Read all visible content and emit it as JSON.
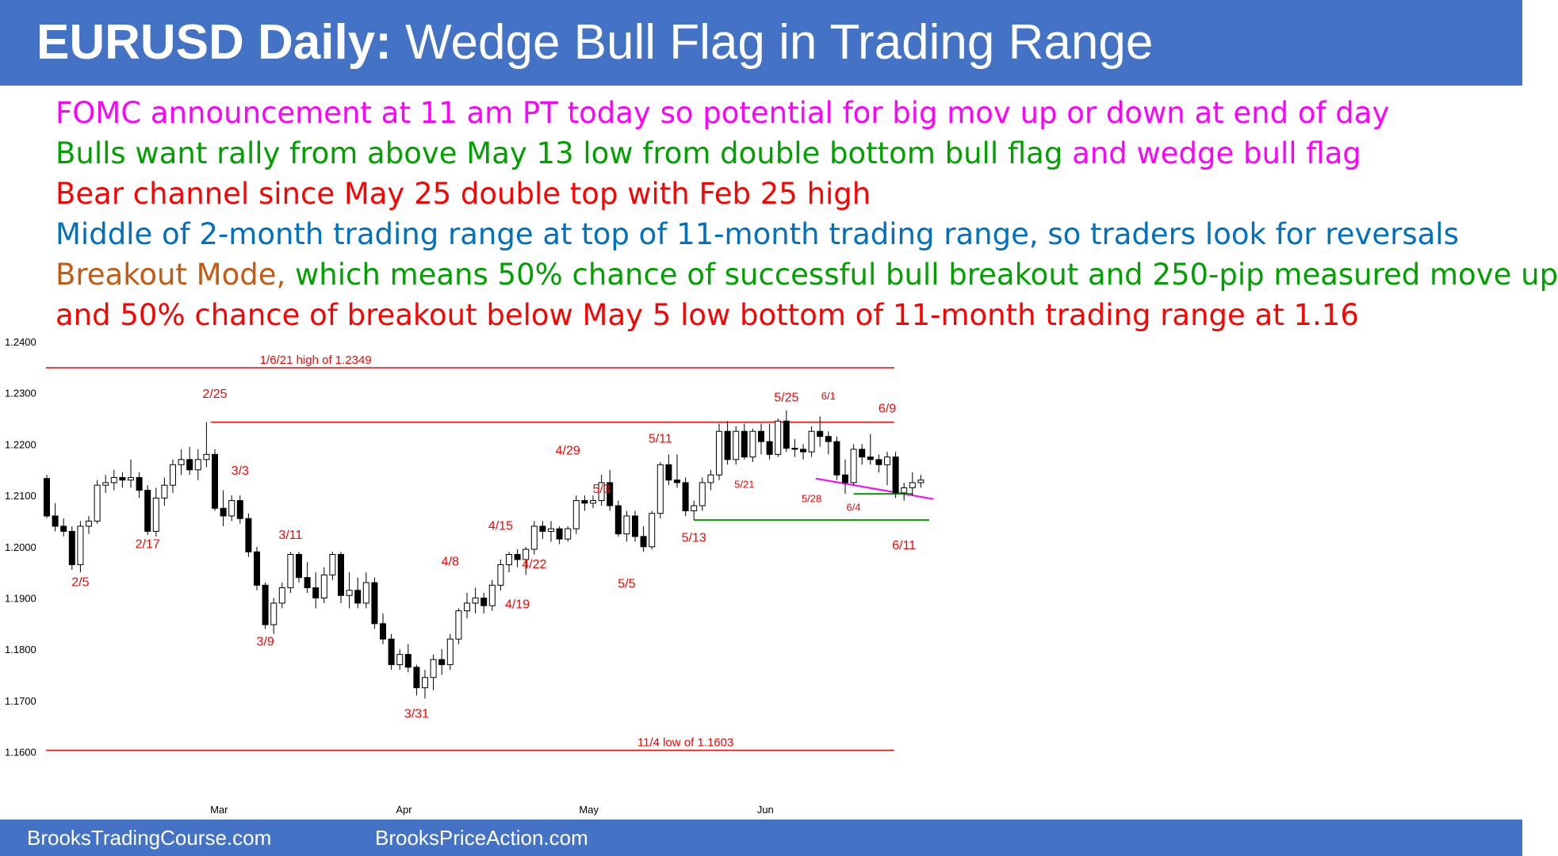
{
  "header": {
    "title_bold": "EURUSD Daily:",
    "title_rest": " Wedge Bull Flag in Trading Range"
  },
  "notes": [
    {
      "parts": [
        {
          "text": "FOMC announcement at 11 am PT today so potential for big mov up or down at end of day",
          "color": "#ff00ff"
        }
      ]
    },
    {
      "parts": [
        {
          "text": "Bulls want rally from above May 13 low from double bottom bull flag ",
          "color": "#00a000"
        },
        {
          "text": "and wedge bull flag",
          "color": "#ff00ff"
        }
      ]
    },
    {
      "parts": [
        {
          "text": "Bear channel since May 25 double top with Feb 25 high",
          "color": "#ff0000"
        }
      ]
    },
    {
      "parts": [
        {
          "text": "Middle of 2-month trading range at top of 11-month trading range, so traders look for reversals",
          "color": "#0070c0"
        }
      ]
    },
    {
      "parts": [
        {
          "text": "Breakout Mode, ",
          "color": "#c55a11"
        },
        {
          "text": "which means 50% chance of successful bull breakout and 250-pip measured move up",
          "color": "#00a000"
        }
      ]
    },
    {
      "parts": [
        {
          "text": "and 50% chance of breakout below May 5 low bottom of 11-month trading range at 1.16",
          "color": "#ff0000"
        }
      ]
    }
  ],
  "footer": {
    "left": "BrooksTradingCourse.com",
    "right": "BrooksPriceAction.com"
  },
  "chart_data": {
    "type": "candlestick",
    "ylim": [
      1.155,
      1.24
    ],
    "y_ticks": [
      "1.2400",
      "1.2300",
      "1.2200",
      "1.2100",
      "1.2000",
      "1.1900",
      "1.1800",
      "1.1700",
      "1.1600"
    ],
    "x_month_labels": [
      {
        "label": "Mar",
        "index": 20.5
      },
      {
        "label": "Apr",
        "index": 42.5
      },
      {
        "label": "May",
        "index": 64.5
      },
      {
        "label": "Jun",
        "index": 85.5
      }
    ],
    "candles": [
      [
        1.2133,
        1.214,
        1.2056,
        1.206
      ],
      [
        1.206,
        1.2085,
        1.203,
        1.204
      ],
      [
        1.204,
        1.2055,
        1.202,
        1.203
      ],
      [
        1.203,
        1.204,
        1.1955,
        1.1965
      ],
      [
        1.1965,
        1.205,
        1.195,
        1.204
      ],
      [
        1.204,
        1.206,
        1.2025,
        1.205
      ],
      [
        1.205,
        1.213,
        1.2045,
        1.212
      ],
      [
        1.212,
        1.214,
        1.2105,
        1.2125
      ],
      [
        1.2125,
        1.215,
        1.211,
        1.2135
      ],
      [
        1.2135,
        1.2145,
        1.2115,
        1.213
      ],
      [
        1.213,
        1.217,
        1.2115,
        1.2135
      ],
      [
        1.2135,
        1.2145,
        1.2095,
        1.211
      ],
      [
        1.211,
        1.212,
        1.2023,
        1.203
      ],
      [
        1.203,
        1.2115,
        1.202,
        1.2095
      ],
      [
        1.2095,
        1.2135,
        1.208,
        1.212
      ],
      [
        1.212,
        1.217,
        1.2105,
        1.216
      ],
      [
        1.216,
        1.219,
        1.214,
        1.217
      ],
      [
        1.217,
        1.2195,
        1.214,
        1.215
      ],
      [
        1.215,
        1.219,
        1.213,
        1.217
      ],
      [
        1.217,
        1.2243,
        1.2155,
        1.218
      ],
      [
        1.218,
        1.219,
        1.207,
        1.2075
      ],
      [
        1.2075,
        1.211,
        1.204,
        1.206
      ],
      [
        1.206,
        1.21,
        1.205,
        1.209
      ],
      [
        1.209,
        1.21,
        1.2045,
        1.2055
      ],
      [
        1.2055,
        1.2065,
        1.198,
        1.199
      ],
      [
        1.199,
        1.2,
        1.1915,
        1.1925
      ],
      [
        1.1925,
        1.193,
        1.184,
        1.1848
      ],
      [
        1.1848,
        1.19,
        1.183,
        1.189
      ],
      [
        1.189,
        1.193,
        1.188,
        1.192
      ],
      [
        1.192,
        1.199,
        1.191,
        1.1985
      ],
      [
        1.1985,
        1.199,
        1.193,
        1.194
      ],
      [
        1.194,
        1.197,
        1.191,
        1.192
      ],
      [
        1.192,
        1.195,
        1.188,
        1.19
      ],
      [
        1.19,
        1.196,
        1.189,
        1.1945
      ],
      [
        1.1945,
        1.199,
        1.1935,
        1.1985
      ],
      [
        1.1985,
        1.199,
        1.189,
        1.1905
      ],
      [
        1.1905,
        1.195,
        1.188,
        1.1915
      ],
      [
        1.1915,
        1.194,
        1.188,
        1.189
      ],
      [
        1.189,
        1.195,
        1.188,
        1.193
      ],
      [
        1.193,
        1.194,
        1.184,
        1.185
      ],
      [
        1.185,
        1.187,
        1.181,
        1.182
      ],
      [
        1.182,
        1.183,
        1.176,
        1.177
      ],
      [
        1.177,
        1.18,
        1.176,
        1.179
      ],
      [
        1.179,
        1.181,
        1.1755,
        1.1765
      ],
      [
        1.1765,
        1.177,
        1.171,
        1.1725
      ],
      [
        1.1725,
        1.176,
        1.1704,
        1.1745
      ],
      [
        1.1745,
        1.179,
        1.172,
        1.178
      ],
      [
        1.178,
        1.18,
        1.175,
        1.177
      ],
      [
        1.177,
        1.183,
        1.176,
        1.182
      ],
      [
        1.182,
        1.188,
        1.181,
        1.1875
      ],
      [
        1.1875,
        1.191,
        1.186,
        1.189
      ],
      [
        1.189,
        1.192,
        1.187,
        1.19
      ],
      [
        1.19,
        1.191,
        1.187,
        1.1885
      ],
      [
        1.1885,
        1.1935,
        1.1875,
        1.1925
      ],
      [
        1.1925,
        1.1975,
        1.1915,
        1.1965
      ],
      [
        1.1965,
        1.199,
        1.195,
        1.1985
      ],
      [
        1.1985,
        1.1995,
        1.196,
        1.1975
      ],
      [
        1.1975,
        1.2,
        1.1945,
        1.1995
      ],
      [
        1.1995,
        1.205,
        1.1985,
        1.204
      ],
      [
        1.204,
        1.205,
        1.2015,
        1.203
      ],
      [
        1.203,
        1.205,
        1.201,
        1.2035
      ],
      [
        1.2035,
        1.204,
        1.2005,
        1.2015
      ],
      [
        1.2015,
        1.204,
        1.201,
        1.2035
      ],
      [
        1.2035,
        1.21,
        1.2025,
        1.209
      ],
      [
        1.209,
        1.21,
        1.207,
        1.2085
      ],
      [
        1.2085,
        1.21,
        1.2075,
        1.209
      ],
      [
        1.209,
        1.214,
        1.208,
        1.2125
      ],
      [
        1.2125,
        1.215,
        1.207,
        1.208
      ],
      [
        1.208,
        1.209,
        1.202,
        1.2025
      ],
      [
        1.2025,
        1.207,
        1.201,
        1.206
      ],
      [
        1.206,
        1.207,
        1.201,
        1.202
      ],
      [
        1.202,
        1.204,
        1.199,
        1.2
      ],
      [
        1.2,
        1.207,
        1.1995,
        1.2065
      ],
      [
        1.2065,
        1.2165,
        1.2055,
        1.216
      ],
      [
        1.216,
        1.218,
        1.212,
        1.213
      ],
      [
        1.213,
        1.218,
        1.2115,
        1.2125
      ],
      [
        1.2125,
        1.2135,
        1.206,
        1.207
      ],
      [
        1.207,
        1.209,
        1.2052,
        1.208
      ],
      [
        1.208,
        1.2135,
        1.207,
        1.2125
      ],
      [
        1.2125,
        1.215,
        1.211,
        1.214
      ],
      [
        1.214,
        1.224,
        1.213,
        1.2225
      ],
      [
        1.2225,
        1.2245,
        1.216,
        1.217
      ],
      [
        1.217,
        1.2235,
        1.216,
        1.2225
      ],
      [
        1.2225,
        1.224,
        1.217,
        1.2175
      ],
      [
        1.2175,
        1.223,
        1.2165,
        1.2225
      ],
      [
        1.2225,
        1.224,
        1.218,
        1.2205
      ],
      [
        1.2205,
        1.224,
        1.217,
        1.218
      ],
      [
        1.218,
        1.225,
        1.2175,
        1.2245
      ],
      [
        1.2245,
        1.2266,
        1.2185,
        1.2192
      ],
      [
        1.2192,
        1.221,
        1.2175,
        1.219
      ],
      [
        1.219,
        1.22,
        1.217,
        1.2185
      ],
      [
        1.2185,
        1.2235,
        1.2175,
        1.2225
      ],
      [
        1.2225,
        1.2254,
        1.2195,
        1.2215
      ],
      [
        1.2215,
        1.2225,
        1.218,
        1.2205
      ],
      [
        1.2205,
        1.2215,
        1.213,
        1.214
      ],
      [
        1.214,
        1.217,
        1.2103,
        1.2125
      ],
      [
        1.2125,
        1.22,
        1.212,
        1.219
      ],
      [
        1.219,
        1.22,
        1.216,
        1.2175
      ],
      [
        1.2175,
        1.222,
        1.216,
        1.217
      ],
      [
        1.217,
        1.218,
        1.2145,
        1.216
      ],
      [
        1.216,
        1.2185,
        1.212,
        1.2175
      ],
      [
        1.2175,
        1.2185,
        1.2095,
        1.2105
      ],
      [
        1.2105,
        1.2125,
        1.209,
        1.2115
      ],
      [
        1.2115,
        1.2145,
        1.21,
        1.2125
      ],
      [
        1.2125,
        1.214,
        1.2115,
        1.213
      ]
    ],
    "levels": [
      {
        "name": "level-line-1-2349",
        "y": 1.2349,
        "from": 0,
        "to": 110,
        "color": "#ff0000",
        "label": "1/6/21 high of 1.2349",
        "label_at": 32
      },
      {
        "name": "level-line-2-25-high",
        "y": 1.2243,
        "from": 19.5,
        "to": 110,
        "color": "#ff0000"
      },
      {
        "name": "level-line-1-1603",
        "y": 1.1603,
        "from": 0,
        "to": 110,
        "color": "#ff0000",
        "label": "11/4 low of 1.1603",
        "label_at": 76
      }
    ],
    "annotation_lines": [
      {
        "name": "double-bottom-line",
        "from_index": 77,
        "to_index": 105,
        "y1": 1.2052,
        "y2": 1.2052,
        "color": "#00a000"
      },
      {
        "name": "wedge-trendline",
        "from_index": 91.5,
        "to_index": 105.5,
        "y1": 1.2133,
        "y2": 1.2093,
        "color": "#ff00ff"
      },
      {
        "name": "double-bottom-short-line",
        "from_index": 96,
        "to_index": 103,
        "y1": 1.2103,
        "y2": 1.2103,
        "color": "#00a000"
      }
    ],
    "candle_labels": [
      {
        "text": "2/5",
        "index": 4,
        "y": 1.1923,
        "size": 16
      },
      {
        "text": "2/17",
        "index": 12,
        "y": 1.1997,
        "size": 16
      },
      {
        "text": "2/25",
        "index": 20,
        "y": 1.229,
        "size": 16
      },
      {
        "text": "3/3",
        "index": 23,
        "y": 1.214,
        "size": 16
      },
      {
        "text": "3/9",
        "index": 26,
        "y": 1.1807,
        "size": 16
      },
      {
        "text": "3/11",
        "index": 29,
        "y": 1.2015,
        "size": 16
      },
      {
        "text": "3/31",
        "index": 44,
        "y": 1.1667,
        "size": 16
      },
      {
        "text": "4/8",
        "index": 48,
        "y": 1.1963,
        "size": 16
      },
      {
        "text": "4/15",
        "index": 54,
        "y": 1.2033,
        "size": 16
      },
      {
        "text": "4/19",
        "index": 56,
        "y": 1.188,
        "size": 16
      },
      {
        "text": "4/22",
        "index": 58,
        "y": 1.1958,
        "size": 16
      },
      {
        "text": "4/29",
        "index": 62,
        "y": 1.218,
        "size": 16
      },
      {
        "text": "5/3",
        "index": 66,
        "y": 1.2105,
        "size": 16
      },
      {
        "text": "5/5",
        "index": 69,
        "y": 1.192,
        "size": 16
      },
      {
        "text": "5/11",
        "index": 73,
        "y": 1.2203,
        "size": 16
      },
      {
        "text": "5/13",
        "index": 77,
        "y": 1.201,
        "size": 16
      },
      {
        "text": "5/21",
        "index": 83,
        "y": 1.2115,
        "size": 13
      },
      {
        "text": "5/25",
        "index": 88,
        "y": 1.2283,
        "size": 16
      },
      {
        "text": "5/28",
        "index": 91,
        "y": 1.2087,
        "size": 13
      },
      {
        "text": "6/1",
        "index": 93,
        "y": 1.2287,
        "size": 13
      },
      {
        "text": "6/4",
        "index": 96,
        "y": 1.207,
        "size": 13
      },
      {
        "text": "6/9",
        "index": 100,
        "y": 1.2262,
        "size": 16
      },
      {
        "text": "6/11",
        "index": 102,
        "y": 1.1995,
        "size": 16
      }
    ]
  }
}
